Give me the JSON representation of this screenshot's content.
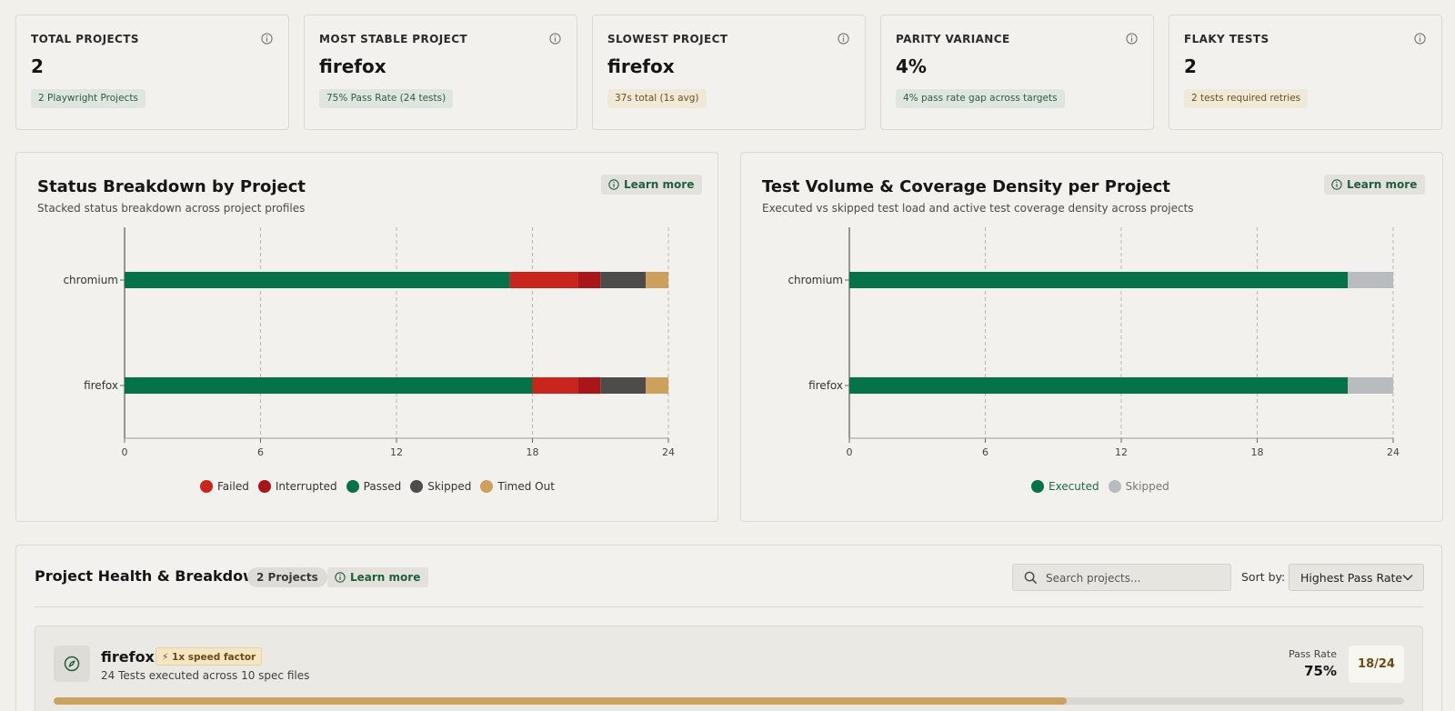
{
  "kpis": [
    {
      "label": "TOTAL PROJECTS",
      "value": "2",
      "pill": "2 Playwright Projects",
      "tone": "green",
      "icon": "info-icon"
    },
    {
      "label": "MOST STABLE PROJECT",
      "value": "firefox",
      "pill": "75% Pass Rate (24 tests)",
      "tone": "green",
      "icon": "info-icon"
    },
    {
      "label": "SLOWEST PROJECT",
      "value": "firefox",
      "pill": "37s total (1s avg)",
      "tone": "amber",
      "icon": "info-icon"
    },
    {
      "label": "PARITY VARIANCE",
      "value": "4%",
      "pill": "4% pass rate gap across targets",
      "tone": "green",
      "icon": "info-icon"
    },
    {
      "label": "FLAKY TESTS",
      "value": "2",
      "pill": "2 tests required retries",
      "tone": "amber",
      "icon": "info-icon"
    }
  ],
  "learn_more": "Learn more",
  "colors": {
    "failed": "#c9251d",
    "interrupted": "#a8161a",
    "passed": "#06724a",
    "skipped_dark": "#4d4c4a",
    "timed_out": "#cda05c",
    "executed": "#06724a",
    "skipped_light": "#b9bcbe",
    "accent": "#1f5f39"
  },
  "chart_data": [
    {
      "type": "bar",
      "orientation": "horizontal",
      "stacked": true,
      "title": "Status Breakdown by Project",
      "subtitle": "Stacked status breakdown across project profiles",
      "categories": [
        "chromium",
        "firefox"
      ],
      "series": [
        {
          "name": "Passed",
          "values": [
            17,
            18
          ]
        },
        {
          "name": "Failed",
          "values": [
            3,
            2
          ]
        },
        {
          "name": "Interrupted",
          "values": [
            1,
            1
          ]
        },
        {
          "name": "Skipped",
          "values": [
            2,
            2
          ]
        },
        {
          "name": "Timed Out",
          "values": [
            1,
            1
          ]
        }
      ],
      "legend": [
        "Failed",
        "Interrupted",
        "Passed",
        "Skipped",
        "Timed Out"
      ],
      "xlim": [
        0,
        24
      ],
      "xticks": [
        "0",
        "6",
        "12",
        "18",
        "24"
      ],
      "grid": "vertical dashed",
      "legend_position": "bottom"
    },
    {
      "type": "bar",
      "orientation": "horizontal",
      "stacked": true,
      "title": "Test Volume & Coverage Density per Project",
      "subtitle": "Executed vs skipped test load and active test coverage density across projects",
      "categories": [
        "chromium",
        "firefox"
      ],
      "series": [
        {
          "name": "Executed",
          "values": [
            22,
            22
          ]
        },
        {
          "name": "Skipped",
          "values": [
            2,
            2
          ]
        }
      ],
      "legend": [
        "Executed",
        "Skipped"
      ],
      "xlim": [
        0,
        24
      ],
      "xticks": [
        "0",
        "6",
        "12",
        "18",
        "24"
      ],
      "grid": "vertical dashed",
      "legend_position": "bottom"
    }
  ],
  "health": {
    "title": "Project Health & Breakdown",
    "count": "2 Projects",
    "search_placeholder": "Search projects...",
    "sort_label": "Sort by:",
    "sort_value": "Highest Pass Rate",
    "project": {
      "name": "firefox",
      "speed_badge": "⚡ 1x speed factor",
      "meta": "24 Tests executed across 10 spec files",
      "pass_rate_label": "Pass Rate",
      "pass_rate_value": "75%",
      "ratio": "18/24",
      "pass_fraction": 0.75,
      "icon": "compass-icon"
    }
  }
}
